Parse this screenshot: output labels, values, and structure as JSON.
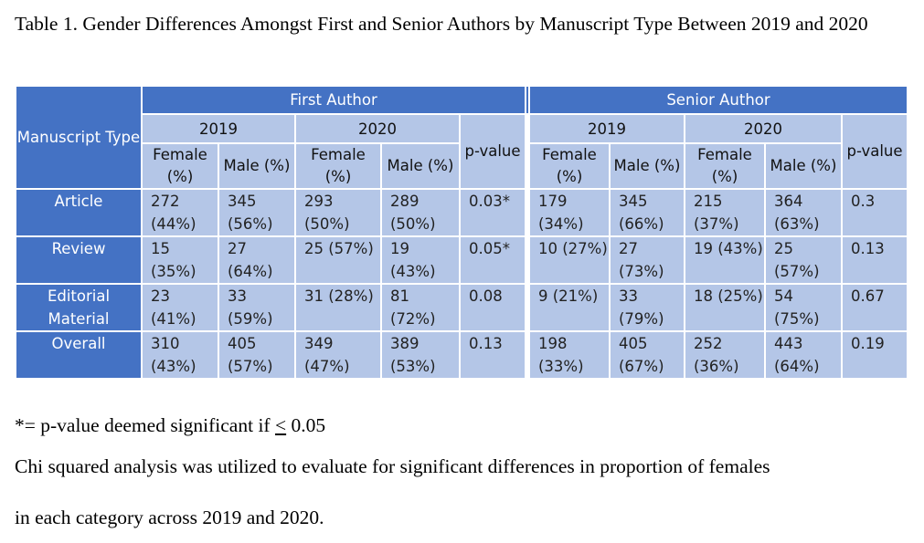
{
  "caption": "Table 1. Gender Differences Amongst First and Senior Authors by Manuscript Type Between 2019 and 2020",
  "table": {
    "col_manuscript_type": "Manuscript Type",
    "first_author": "First Author",
    "senior_author": "Senior Author",
    "year_2019": "2019",
    "year_2020": "2020",
    "female_label": "Female (%)",
    "male_label": "Male (%)",
    "pvalue_label": "p-value",
    "rows": [
      {
        "type": "Article",
        "fa19f": "272 (44%)",
        "fa19m": "345 (56%)",
        "fa20f": "293 (50%)",
        "fa20m": "289 (50%)",
        "fap": "0.03*",
        "sa19f": "179 (34%)",
        "sa19m": "345 (66%)",
        "sa20f": "215 (37%)",
        "sa20m": "364 (63%)",
        "sap": "0.3"
      },
      {
        "type": "Review",
        "fa19f": "15 (35%)",
        "fa19m": "27 (64%)",
        "fa20f": "25 (57%)",
        "fa20m": "19 (43%)",
        "fap": "0.05*",
        "sa19f": "10 (27%)",
        "sa19m": "27 (73%)",
        "sa20f": "19 (43%)",
        "sa20m": "25 (57%)",
        "sap": "0.13"
      },
      {
        "type": "Editorial Material",
        "fa19f": "23 (41%)",
        "fa19m": "33 (59%)",
        "fa20f": "31 (28%)",
        "fa20m": "81 (72%)",
        "fap": "0.08",
        "sa19f": "9 (21%)",
        "sa19m": "33 (79%)",
        "sa20f": "18 (25%)",
        "sa20m": "54 (75%)",
        "sap": "0.67"
      },
      {
        "type": "Overall",
        "fa19f": "310 (43%)",
        "fa19m": "405 (57%)",
        "fa20f": "349 (47%)",
        "fa20m": "389 (53%)",
        "fap": "0.13",
        "sa19f": "198 (33%)",
        "sa19m": "405 (67%)",
        "sa20f": "252 (36%)",
        "sa20m": "443 (64%)",
        "sap": "0.19"
      }
    ]
  },
  "footnote": {
    "significance_prefix": "*= p-value deemed significant if ",
    "significance_symbol": "<",
    "significance_suffix": " 0.05",
    "method_line1": "Chi squared analysis was utilized to evaluate for significant differences in proportion of females",
    "method_line2": "in each category across 2019 and 2020."
  },
  "colors": {
    "header_blue": "#4472c4",
    "cell_light_blue": "#b4c6e7"
  }
}
